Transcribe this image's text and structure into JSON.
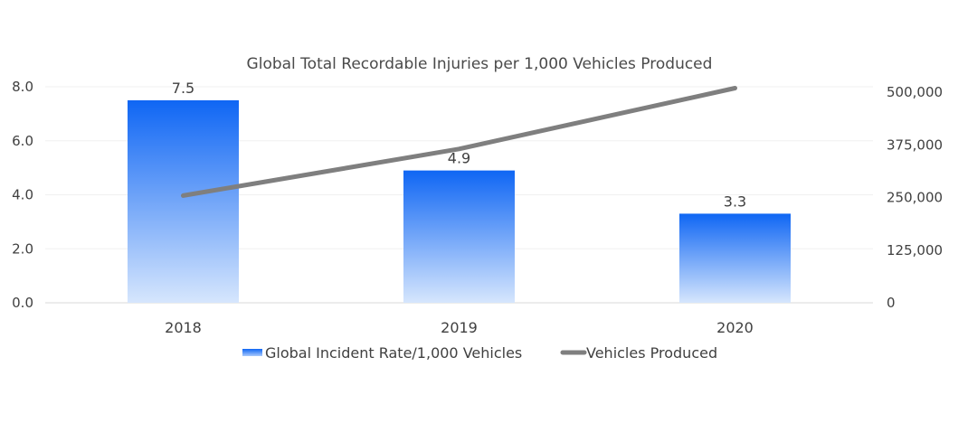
{
  "chart_data": {
    "type": "bar",
    "title": "Global Total Recordable Injuries per 1,000 Vehicles Produced",
    "categories": [
      "2018",
      "2019",
      "2020"
    ],
    "series": [
      {
        "name": "Global Incident Rate/1,000 Vehicles",
        "type": "bar",
        "axis": "left",
        "values": [
          7.5,
          4.9,
          3.3
        ],
        "data_labels": [
          "7.5",
          "4.9",
          "3.3"
        ],
        "color": "#1a6ff5"
      },
      {
        "name": "Vehicles Produced",
        "type": "line",
        "axis": "right",
        "values": [
          254530,
          365232,
          509737
        ],
        "color": "#7f7f7f"
      }
    ],
    "y_left": {
      "ticks": [
        "0.0",
        "2.0",
        "4.0",
        "6.0",
        "8.0"
      ],
      "range": [
        0,
        8
      ]
    },
    "y_right": {
      "ticks": [
        "0",
        "125,000",
        "250,000",
        "375,000",
        "500,000"
      ],
      "range": [
        0,
        500000
      ]
    },
    "legend_position": "bottom",
    "grid": true
  }
}
